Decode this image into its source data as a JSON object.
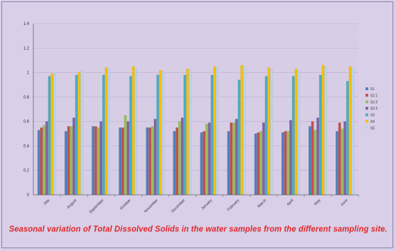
{
  "chart_data": {
    "type": "bar",
    "title": "",
    "xlabel": "",
    "ylabel": "",
    "ylim": [
      0,
      1.4
    ],
    "yticks": [
      "0",
      "0.2",
      "0.4",
      "0.6",
      "0.8",
      "1",
      "1.2",
      "1.4"
    ],
    "grid": true,
    "legend_position": "right",
    "categories": [
      "July",
      "August",
      "September",
      "October",
      "November",
      "December",
      "January",
      "February",
      "March",
      "April",
      "May",
      "June"
    ],
    "series": [
      {
        "name": "S1",
        "color": "#4f7fbe",
        "values": [
          0.53,
          0.52,
          0.56,
          0.55,
          0.55,
          0.52,
          0.51,
          0.52,
          0.5,
          0.51,
          0.56,
          0.52
        ]
      },
      {
        "name": "S2.1",
        "color": "#c0504d",
        "values": [
          0.55,
          0.56,
          0.56,
          0.55,
          0.55,
          0.55,
          0.52,
          0.59,
          0.51,
          0.52,
          0.6,
          0.59
        ]
      },
      {
        "name": "S2.2",
        "color": "#9bbb59",
        "values": [
          0.57,
          0.56,
          0.55,
          0.65,
          0.56,
          0.6,
          0.58,
          0.59,
          0.52,
          0.52,
          0.53,
          0.54
        ]
      },
      {
        "name": "S2.3",
        "color": "#8064a2",
        "values": [
          0.6,
          0.63,
          0.6,
          0.6,
          0.62,
          0.63,
          0.59,
          0.62,
          0.59,
          0.61,
          0.63,
          0.6
        ]
      },
      {
        "name": "S3",
        "color": "#4bacc6",
        "values": [
          0.97,
          0.98,
          0.98,
          0.97,
          0.98,
          0.98,
          0.98,
          0.94,
          0.97,
          0.97,
          0.98,
          0.93
        ]
      },
      {
        "name": "S4",
        "color": "#f7c000",
        "values": [
          0.99,
          1.0,
          1.04,
          1.05,
          1.02,
          1.03,
          1.05,
          1.06,
          1.04,
          1.03,
          1.06,
          1.05
        ]
      },
      {
        "name": "S5",
        "color": "#bcd3ea",
        "values": [
          0.99,
          1.01,
          1.03,
          1.04,
          1.01,
          1.02,
          1.04,
          1.05,
          1.03,
          1.02,
          1.04,
          1.04
        ]
      }
    ]
  },
  "caption": {
    "text": "Seasonal variation of Total Dissolved Solids in the water samples from the different sampling site."
  }
}
